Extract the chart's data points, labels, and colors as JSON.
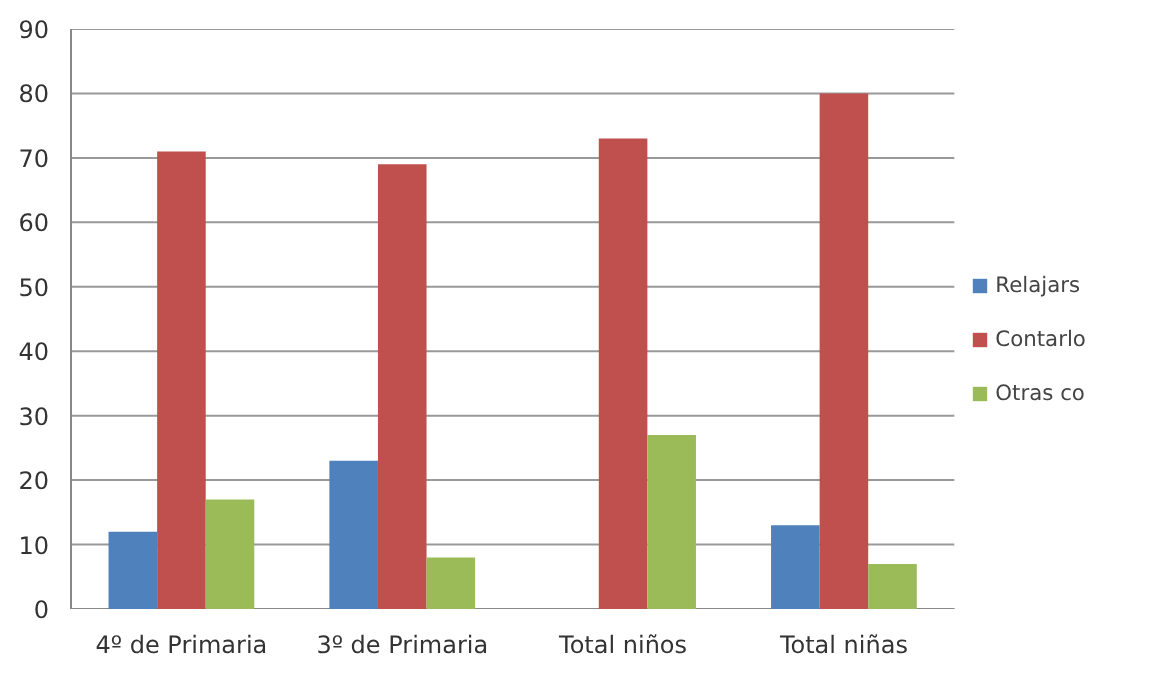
{
  "chart_data": {
    "type": "bar",
    "categories": [
      "4º de Primaria",
      "3º de Primaria",
      "Total niños",
      "Total niñas"
    ],
    "series": [
      {
        "name": "Relajars",
        "color": "#4f81bd",
        "values": [
          12,
          23,
          0,
          13
        ]
      },
      {
        "name": "Contarlo",
        "color": "#c0504d",
        "values": [
          71,
          69,
          73,
          80
        ]
      },
      {
        "name": "Otras co",
        "color": "#9bbb59",
        "values": [
          17,
          8,
          27,
          7
        ]
      }
    ],
    "ylim": [
      0,
      90
    ],
    "yticks": [
      0,
      10,
      20,
      30,
      40,
      50,
      60,
      70,
      80,
      90
    ],
    "grid": "y",
    "legend": "right"
  }
}
